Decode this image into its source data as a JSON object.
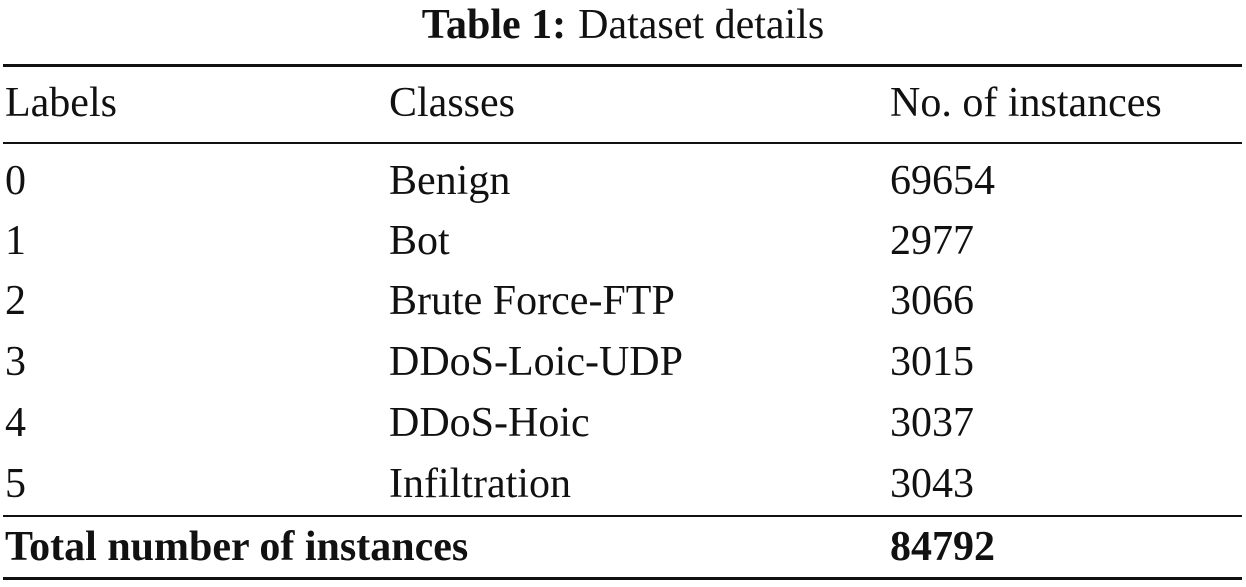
{
  "table": {
    "caption_label": "Table 1:",
    "caption_text": "Dataset details",
    "headers": [
      "Labels",
      "Classes",
      "No. of instances"
    ],
    "rows": [
      {
        "label": "0",
        "class": "Benign",
        "count": "69654"
      },
      {
        "label": "1",
        "class": "Bot",
        "count": "2977"
      },
      {
        "label": "2",
        "class": "Brute Force-FTP",
        "count": "3066"
      },
      {
        "label": "3",
        "class": "DDoS-Loic-UDP",
        "count": "3015"
      },
      {
        "label": "4",
        "class": "DDoS-Hoic",
        "count": "3037"
      },
      {
        "label": "5",
        "class": "Infiltration",
        "count": "3043"
      }
    ],
    "total": {
      "label": "Total number of instances",
      "value": "84792"
    }
  }
}
